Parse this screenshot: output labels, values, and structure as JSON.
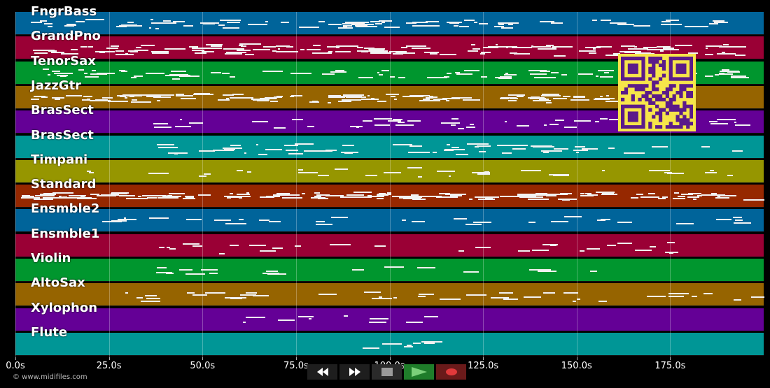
{
  "app": {
    "copyright": "© www.midifiles.com"
  },
  "timeline": {
    "duration_seconds": 200,
    "ticks": [
      "0.0s",
      "25.0s",
      "50.0s",
      "75.0s",
      "100.0s",
      "125.0s",
      "150.0s",
      "175.0s"
    ]
  },
  "tracks": [
    {
      "name": "FngrBass",
      "color": "#00649a"
    },
    {
      "name": "GrandPno",
      "color": "#9a0035"
    },
    {
      "name": "TenorSax",
      "color": "#00962e"
    },
    {
      "name": "JazzGtr",
      "color": "#966400"
    },
    {
      "name": "BrasSect",
      "color": "#640096"
    },
    {
      "name": "BrasSect",
      "color": "#009696"
    },
    {
      "name": "Timpani",
      "color": "#969600"
    },
    {
      "name": "Standard",
      "color": "#962800"
    },
    {
      "name": "Ensmble2",
      "color": "#00649a"
    },
    {
      "name": "Ensmble1",
      "color": "#9a0035"
    },
    {
      "name": "Violin",
      "color": "#00962e"
    },
    {
      "name": "AltoSax",
      "color": "#966400"
    },
    {
      "name": "Xylophon",
      "color": "#640096"
    },
    {
      "name": "Flute",
      "color": "#009696"
    }
  ],
  "transport": {
    "buttons": [
      {
        "name": "rewind-button",
        "icon": "rewind-icon"
      },
      {
        "name": "fast-forward-button",
        "icon": "fast-forward-icon"
      },
      {
        "name": "stop-button",
        "icon": "stop-icon"
      },
      {
        "name": "play-button",
        "icon": "play-icon"
      },
      {
        "name": "record-button",
        "icon": "record-icon"
      }
    ]
  },
  "overlay": {
    "qr_code": "qr-code-icon",
    "qr_color": "#5a1a8a",
    "qr_background": "#f6e54a"
  }
}
